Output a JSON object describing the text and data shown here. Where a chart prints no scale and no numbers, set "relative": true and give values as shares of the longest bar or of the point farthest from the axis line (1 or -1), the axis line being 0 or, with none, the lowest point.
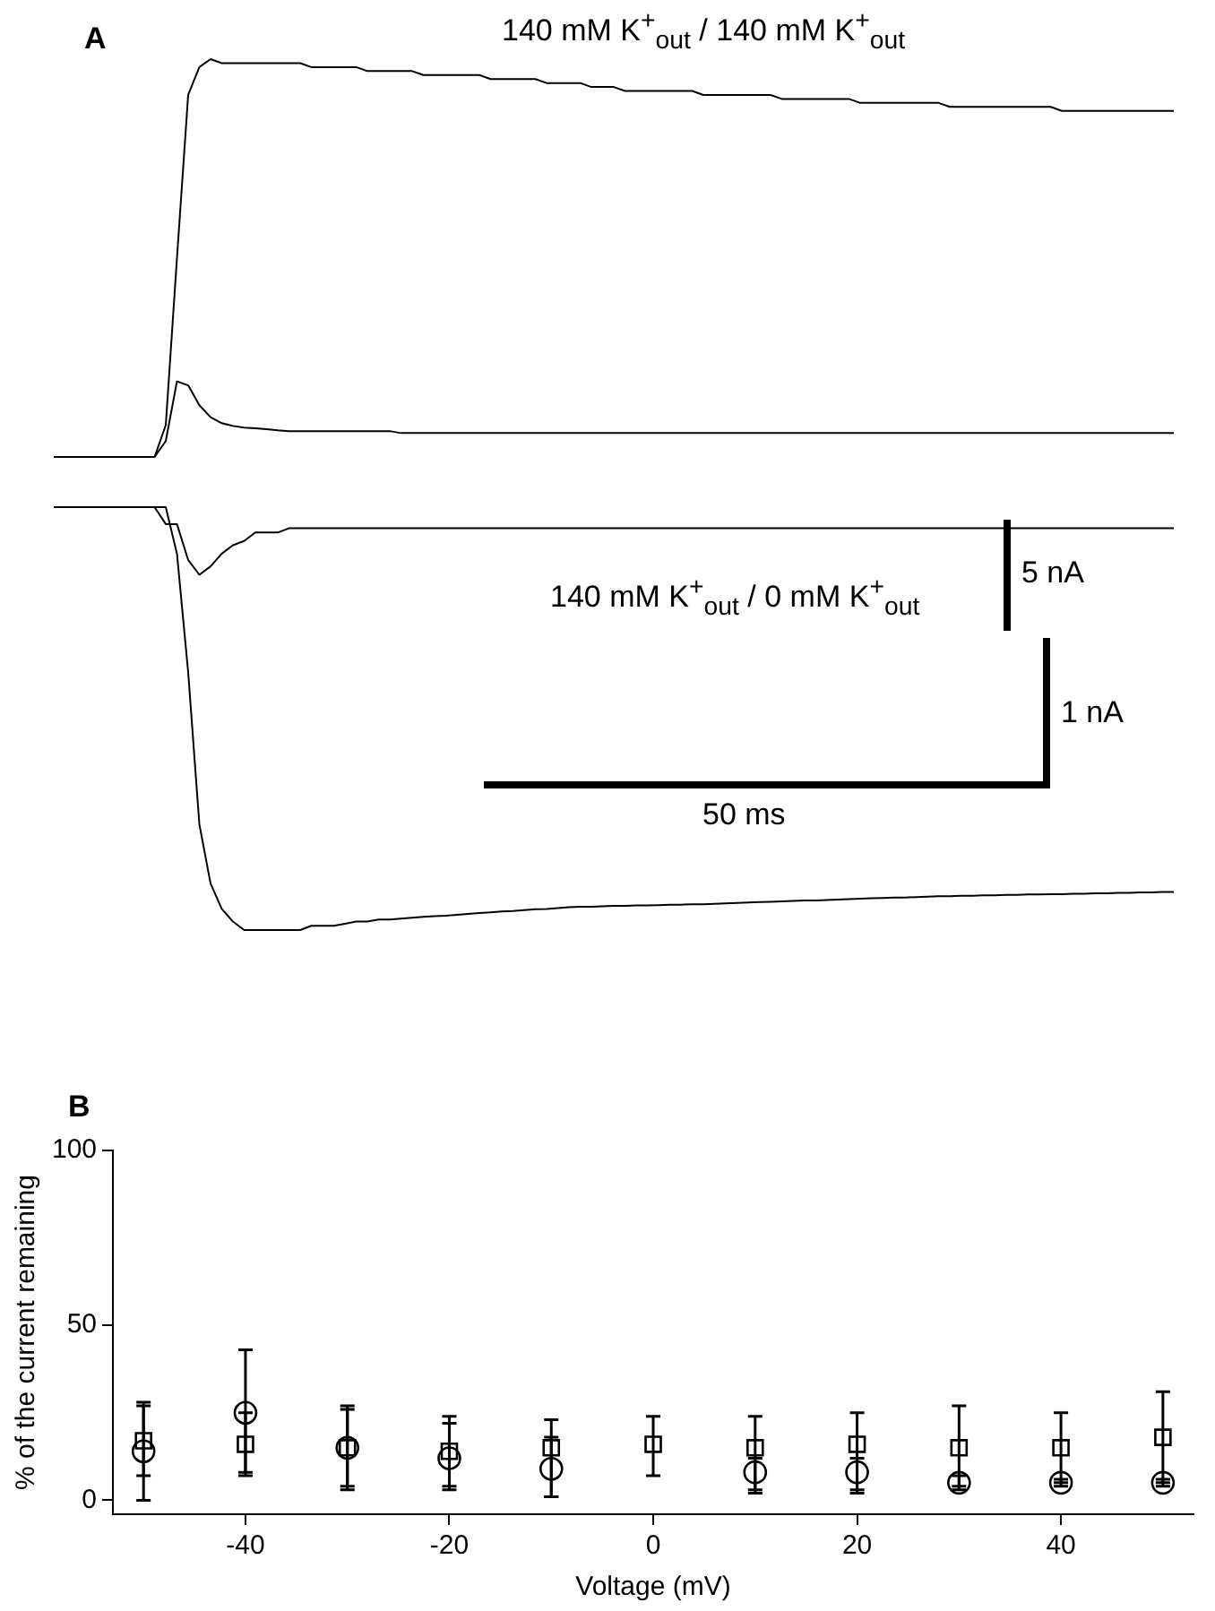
{
  "chart_data": [
    {
      "type": "line",
      "title": "A",
      "subtitle": "140 mM K$^{+}$$_{out}$ / 140 mM K$^{+}$$_{out}$",
      "annotations": [
        "5 nA"
      ],
      "relative": true,
      "marker": "none",
      "categories": [
        null,
        null,
        null,
        null,
        null,
        null,
        null,
        null,
        null,
        null,
        null,
        null,
        null,
        null,
        null,
        null,
        null,
        null,
        null,
        null,
        null,
        null,
        null,
        null,
        null,
        null,
        null,
        null,
        null,
        null,
        null,
        null,
        null,
        null,
        null,
        null,
        null,
        null,
        null,
        null,
        null,
        null,
        null,
        null,
        null,
        null,
        null,
        null,
        null,
        null,
        null,
        null,
        null,
        null,
        null,
        null,
        null,
        null,
        null,
        null,
        null,
        null,
        null,
        null,
        null,
        null,
        null,
        null,
        null,
        null,
        null,
        null,
        null,
        null,
        null,
        null,
        null,
        null,
        null,
        null,
        null,
        null,
        null,
        null,
        null,
        null,
        null,
        null,
        null,
        null,
        null,
        null,
        null,
        null,
        null,
        null,
        null,
        null,
        null,
        null,
        null
      ],
      "series": [
        {
          "color": "#000000",
          "values": [
            0,
            0,
            0,
            0,
            0,
            0,
            0,
            0,
            0,
            0,
            0.08,
            0.5,
            0.91,
            0.98,
            1,
            0.99,
            0.99,
            0.99,
            0.99,
            0.99,
            0.99,
            0.99,
            0.99,
            0.98,
            0.98,
            0.98,
            0.98,
            0.98,
            0.97,
            0.97,
            0.97,
            0.97,
            0.97,
            0.96,
            0.96,
            0.96,
            0.96,
            0.96,
            0.96,
            0.95,
            0.95,
            0.95,
            0.95,
            0.95,
            0.94,
            0.94,
            0.94,
            0.94,
            0.93,
            0.93,
            0.93,
            0.92,
            0.92,
            0.92,
            0.92,
            0.92,
            0.92,
            0.92,
            0.91,
            0.91,
            0.91,
            0.91,
            0.91,
            0.91,
            0.91,
            0.9,
            0.9,
            0.9,
            0.9,
            0.9,
            0.9,
            0.9,
            0.89,
            0.89,
            0.89,
            0.89,
            0.89,
            0.89,
            0.89,
            0.89,
            0.88,
            0.88,
            0.88,
            0.88,
            0.88,
            0.88,
            0.88,
            0.88,
            0.88,
            0.88,
            0.87,
            0.87,
            0.87,
            0.87,
            0.87,
            0.87,
            0.87,
            0.87,
            0.87,
            0.87,
            0.87
          ]
        },
        {
          "color": "#000000",
          "values": [
            0,
            0,
            0,
            0,
            0,
            0,
            0,
            0,
            0,
            0,
            0.04,
            0.19,
            0.18,
            0.13,
            0.1,
            0.085,
            0.078,
            0.074,
            0.072,
            0.07,
            0.067,
            0.065,
            0.065,
            0.065,
            0.065,
            0.065,
            0.065,
            0.065,
            0.065,
            0.065,
            0.065,
            0.06,
            0.06,
            0.06,
            0.06,
            0.06,
            0.06,
            0.06,
            0.06,
            0.06,
            0.06,
            0.06,
            0.06,
            0.06,
            0.06,
            0.06,
            0.06,
            0.06,
            0.06,
            0.06,
            0.06,
            0.06,
            0.06,
            0.06,
            0.06,
            0.06,
            0.06,
            0.06,
            0.06,
            0.06,
            0.06,
            0.06,
            0.06,
            0.06,
            0.06,
            0.06,
            0.06,
            0.06,
            0.06,
            0.06,
            0.06,
            0.06,
            0.06,
            0.06,
            0.06,
            0.06,
            0.06,
            0.06,
            0.06,
            0.06,
            0.06,
            0.06,
            0.06,
            0.06,
            0.06,
            0.06,
            0.06,
            0.06,
            0.06,
            0.06,
            0.06,
            0.06,
            0.06,
            0.06,
            0.06,
            0.06,
            0.06,
            0.06,
            0.06,
            0.06,
            0.06
          ]
        }
      ]
    },
    {
      "type": "line",
      "subtitle": "140 mM K$^{+}$$_{out}$ / 0 mM K$^{+}$$_{out}$",
      "annotations": [
        "1 nA",
        "50 ms"
      ],
      "relative": true,
      "marker": "none",
      "categories": [
        null,
        null,
        null,
        null,
        null,
        null,
        null,
        null,
        null,
        null,
        null,
        null,
        null,
        null,
        null,
        null,
        null,
        null,
        null,
        null,
        null,
        null,
        null,
        null,
        null,
        null,
        null,
        null,
        null,
        null,
        null,
        null,
        null,
        null,
        null,
        null,
        null,
        null,
        null,
        null,
        null,
        null,
        null,
        null,
        null,
        null,
        null,
        null,
        null,
        null,
        null,
        null,
        null,
        null,
        null,
        null,
        null,
        null,
        null,
        null,
        null,
        null,
        null,
        null,
        null,
        null,
        null,
        null,
        null,
        null,
        null,
        null,
        null,
        null,
        null,
        null,
        null,
        null,
        null,
        null,
        null,
        null,
        null,
        null,
        null,
        null,
        null,
        null,
        null,
        null,
        null,
        null,
        null,
        null,
        null,
        null,
        null,
        null,
        null,
        null,
        null
      ],
      "series": [
        {
          "color": "#000000",
          "values": [
            1,
            1,
            1,
            1,
            1,
            1,
            1,
            1,
            1,
            1,
            0.96,
            0.96,
            0.875,
            0.84,
            0.86,
            0.89,
            0.91,
            0.92,
            0.94,
            0.94,
            0.94,
            0.95,
            0.95,
            0.95,
            0.95,
            0.95,
            0.95,
            0.95,
            0.95,
            0.95,
            0.95,
            0.95,
            0.95,
            0.95,
            0.95,
            0.95,
            0.95,
            0.95,
            0.95,
            0.95,
            0.95,
            0.95,
            0.95,
            0.95,
            0.95,
            0.95,
            0.95,
            0.95,
            0.95,
            0.95,
            0.95,
            0.95,
            0.95,
            0.95,
            0.95,
            0.95,
            0.95,
            0.95,
            0.95,
            0.95,
            0.95,
            0.95,
            0.95,
            0.95,
            0.95,
            0.95,
            0.95,
            0.95,
            0.95,
            0.95,
            0.95,
            0.95,
            0.95,
            0.95,
            0.95,
            0.95,
            0.95,
            0.95,
            0.95,
            0.95,
            0.95,
            0.95,
            0.95,
            0.95,
            0.95,
            0.95,
            0.95,
            0.95,
            0.95,
            0.95,
            0.95,
            0.95,
            0.95,
            0.95,
            0.95,
            0.95,
            0.95,
            0.95,
            0.95,
            0.95,
            0.95
          ]
        },
        {
          "color": "#000000",
          "values": [
            1,
            1,
            1,
            1,
            1,
            1,
            1,
            1,
            1,
            1,
            1,
            0.89,
            0.61,
            0.25,
            0.11,
            0.05,
            0.02,
            0,
            0,
            0,
            0,
            0,
            0,
            0.01,
            0.01,
            0.01,
            0.015,
            0.02,
            0.02,
            0.025,
            0.025,
            0.027,
            0.029,
            0.031,
            0.033,
            0.034,
            0.036,
            0.038,
            0.04,
            0.042,
            0.044,
            0.045,
            0.047,
            0.049,
            0.05,
            0.052,
            0.054,
            0.055,
            0.055,
            0.056,
            0.057,
            0.057,
            0.058,
            0.058,
            0.059,
            0.06,
            0.06,
            0.061,
            0.061,
            0.062,
            0.063,
            0.064,
            0.065,
            0.066,
            0.067,
            0.068,
            0.069,
            0.07,
            0.07,
            0.071,
            0.072,
            0.073,
            0.074,
            0.075,
            0.076,
            0.077,
            0.077,
            0.078,
            0.079,
            0.08,
            0.08,
            0.081,
            0.081,
            0.082,
            0.082,
            0.083,
            0.083,
            0.084,
            0.084,
            0.085,
            0.085,
            0.086,
            0.086,
            0.087,
            0.087,
            0.088,
            0.088,
            0.089,
            0.089,
            0.09,
            0.09
          ]
        }
      ]
    },
    {
      "type": "scatter",
      "title": "B",
      "xlabel": "Voltage (mV)",
      "ylabel": "% of the current remaining",
      "xlim": [
        -53,
        53
      ],
      "ylim": [
        -4,
        100
      ],
      "xticks": [
        -40,
        -20,
        0,
        20,
        40
      ],
      "yticks": [
        0,
        50,
        100
      ],
      "x": [
        -50,
        -40,
        -30,
        -20,
        -10,
        0,
        10,
        20,
        30,
        40,
        50
      ],
      "series": [
        {
          "color": "#000000",
          "marker": "square",
          "values": [
            17,
            16,
            15,
            14,
            15,
            16,
            15,
            16,
            15,
            15,
            18
          ],
          "errors": [
            [
              7,
              27
            ],
            [
              7,
              25
            ],
            [
              3,
              27
            ],
            [
              4,
              24
            ],
            [
              1,
              23
            ],
            [
              7,
              24
            ],
            [
              3,
              24
            ],
            [
              3,
              25
            ],
            [
              3,
              27
            ],
            [
              5,
              25
            ],
            [
              5,
              31
            ]
          ]
        },
        {
          "color": "#000000",
          "marker": "circle",
          "values": [
            14,
            25,
            15,
            12,
            9,
            null,
            8,
            8,
            5,
            5,
            5
          ],
          "errors": [
            [
              0,
              28
            ],
            [
              8,
              43
            ],
            [
              4,
              26
            ],
            [
              3,
              22
            ],
            [
              1,
              18
            ],
            null,
            [
              2,
              12
            ],
            [
              2,
              12
            ],
            [
              4,
              7
            ],
            [
              4,
              6
            ],
            [
              4,
              6
            ]
          ]
        }
      ]
    }
  ]
}
